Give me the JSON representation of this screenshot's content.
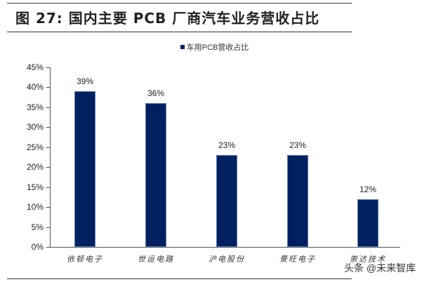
{
  "header": {
    "title": "图 27:  国内主要 PCB 厂商汽车业务营收占比"
  },
  "legend": {
    "label": "车用PCB营收占比",
    "color": "#002060"
  },
  "watermark": "头条 @未来智库",
  "chart_data": {
    "type": "bar",
    "title": "国内主要 PCB 厂商汽车业务营收占比",
    "xlabel": "",
    "ylabel": "",
    "categories": [
      "依顿电子",
      "世运电路",
      "沪电股份",
      "景旺电子",
      "崇达技术"
    ],
    "series": [
      {
        "name": "车用PCB营收占比",
        "values": [
          39,
          36,
          23,
          23,
          12
        ],
        "color": "#002060"
      }
    ],
    "data_labels": [
      "39%",
      "36%",
      "23%",
      "23%",
      "12%"
    ],
    "ylim": [
      0,
      45
    ],
    "yticks": [
      "0%",
      "5%",
      "10%",
      "15%",
      "20%",
      "25%",
      "30%",
      "35%",
      "40%",
      "45%"
    ],
    "grid": false,
    "legend_position": "top"
  }
}
